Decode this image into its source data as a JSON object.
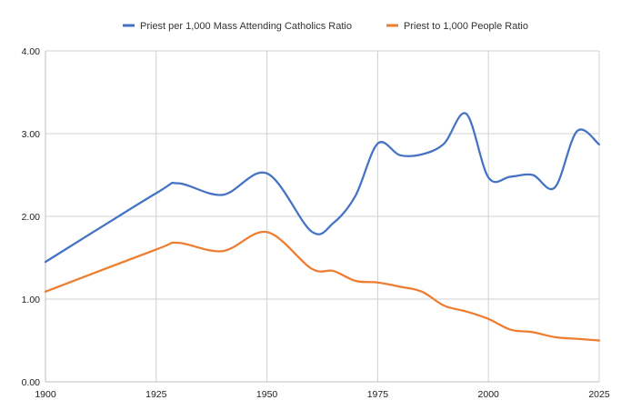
{
  "chart_data": {
    "type": "line",
    "title": "",
    "xlabel": "",
    "ylabel": "",
    "xlim": [
      1900,
      2025
    ],
    "ylim": [
      0,
      4
    ],
    "grid": true,
    "legend_position": "top",
    "x_ticks": [
      1900,
      1925,
      1950,
      1975,
      2000,
      2025
    ],
    "y_ticks": [
      0,
      1,
      2,
      3,
      4
    ],
    "x_tick_labels": [
      "1900",
      "1925",
      "1950",
      "1975",
      "2000",
      "2025"
    ],
    "y_tick_labels": [
      "0.00",
      "1.00",
      "2.00",
      "3.00",
      "4.00"
    ],
    "series": [
      {
        "name": "Priest per 1,000 Mass Attending Catholics Ratio",
        "color": "#4472C4",
        "x": [
          1900,
          1925,
          1930,
          1940,
          1950,
          1960,
          1965,
          1970,
          1975,
          1980,
          1985,
          1990,
          1995,
          2000,
          2005,
          2010,
          2015,
          2020,
          2025
        ],
        "values": [
          1.45,
          2.28,
          2.4,
          2.26,
          2.52,
          1.82,
          1.92,
          2.25,
          2.88,
          2.74,
          2.75,
          2.88,
          3.24,
          2.47,
          2.48,
          2.5,
          2.35,
          3.03,
          2.87
        ]
      },
      {
        "name": "Priest to 1,000 People Ratio",
        "color": "#ED7D31",
        "x": [
          1900,
          1925,
          1930,
          1940,
          1950,
          1960,
          1965,
          1970,
          1975,
          1980,
          1985,
          1990,
          1995,
          2000,
          2005,
          2010,
          2015,
          2020,
          2025
        ],
        "values": [
          1.09,
          1.6,
          1.68,
          1.58,
          1.81,
          1.37,
          1.34,
          1.22,
          1.2,
          1.15,
          1.09,
          0.92,
          0.85,
          0.76,
          0.63,
          0.6,
          0.54,
          0.52,
          0.5
        ]
      }
    ]
  }
}
